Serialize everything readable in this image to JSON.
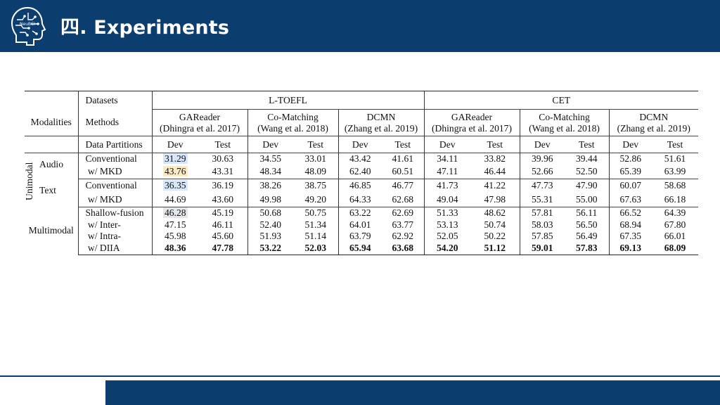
{
  "slide": {
    "title": "四. Experiments",
    "logo_text": "NeuBCI",
    "colors": {
      "header": "#0b3d6e",
      "highlight_blue": "#d7e7f7",
      "highlight_yellow": "#faebc8",
      "highlight_gray": "#e3e6ea"
    }
  },
  "table": {
    "h_datasets": "Datasets",
    "h_modalities": "Modalities",
    "h_methods": "Methods",
    "h_partitions": "Data Partitions",
    "ds1": "L-TOEFL",
    "ds2": "CET",
    "m1_name": "GAReader",
    "m1_cite": "(Dhingra et al. 2017)",
    "m2_name": "Co-Matching",
    "m2_cite": "(Wang et al. 2018)",
    "m3_name": "DCMN",
    "m3_cite": "(Zhang et al. 2019)",
    "dev": "Dev",
    "test": "Test",
    "unimodal": "Unimodal",
    "audio": "Audio",
    "text": "Text",
    "multimodal": "Multimodal",
    "conventional": "Conventional",
    "w_mkd": "w/ MKD",
    "shallow": "Shallow-fusion",
    "inter": "w/ Inter-",
    "intra": "w/ Intra-",
    "diia": "w/ DIIA",
    "rows": {
      "audio_conv": [
        "31.29",
        "30.63",
        "34.55",
        "33.01",
        "43.42",
        "41.61",
        "34.11",
        "33.82",
        "39.96",
        "39.44",
        "52.86",
        "51.61"
      ],
      "audio_mkd": [
        "43.76",
        "43.31",
        "48.34",
        "48.09",
        "62.40",
        "60.51",
        "47.11",
        "46.44",
        "52.66",
        "52.50",
        "65.39",
        "63.99"
      ],
      "text_conv": [
        "36.35",
        "36.19",
        "38.26",
        "38.75",
        "46.85",
        "46.77",
        "41.73",
        "41.22",
        "47.73",
        "47.90",
        "60.07",
        "58.68"
      ],
      "text_mkd": [
        "44.69",
        "43.60",
        "49.98",
        "49.20",
        "64.33",
        "62.68",
        "49.04",
        "47.98",
        "55.31",
        "55.00",
        "67.63",
        "66.18"
      ],
      "shallow": [
        "46.28",
        "45.19",
        "50.68",
        "50.75",
        "63.22",
        "62.69",
        "51.33",
        "48.62",
        "57.81",
        "56.11",
        "66.52",
        "64.39"
      ],
      "inter": [
        "47.15",
        "46.11",
        "52.40",
        "51.34",
        "64.01",
        "63.77",
        "53.13",
        "50.74",
        "58.03",
        "56.50",
        "68.94",
        "67.80"
      ],
      "intra": [
        "45.98",
        "45.60",
        "51.93",
        "51.14",
        "63.79",
        "62.92",
        "52.05",
        "50.22",
        "57.85",
        "56.49",
        "67.35",
        "66.01"
      ],
      "diia": [
        "48.36",
        "47.78",
        "53.22",
        "52.03",
        "65.94",
        "63.68",
        "54.20",
        "51.12",
        "59.01",
        "57.83",
        "69.13",
        "68.09"
      ]
    }
  }
}
